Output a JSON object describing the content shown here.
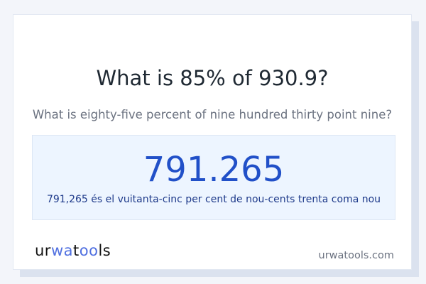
{
  "title": "What is 85% of 930.9?",
  "subtitle": "What is eighty-five percent of nine hundred thirty point nine?",
  "result": {
    "value": "791.265",
    "words": "791,265 és el vuitanta-cinc per cent de nou-cents trenta coma nou"
  },
  "brand": {
    "logo_text": "urwatools",
    "logo_parts": [
      "ur",
      "wa",
      "t",
      "oo",
      "ls"
    ],
    "site": "urwatools.com"
  },
  "colors": {
    "accent": "#2150c8",
    "result_bg": "#edf5ff",
    "logo_accent": "#4f6fe0"
  }
}
